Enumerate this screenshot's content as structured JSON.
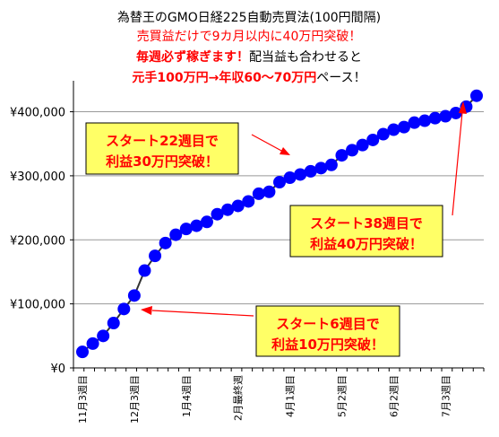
{
  "header": {
    "title": "為替王のGMO日経225自動売買法(100円間隔)",
    "line2": "売買益だけで9カ月以内に40万円突破！",
    "line3_emph": "毎週必ず稼ぎます！",
    "line3_rest": "配当益も合わせると",
    "line4_emph": "元手100万円→年収60～70万円",
    "line4_rest": "ペース！"
  },
  "callouts": [
    {
      "line1": "スタート22週目で",
      "line2": "利益30万円突破！"
    },
    {
      "line1": "スタート38週目で",
      "line2": "利益40万円突破！"
    },
    {
      "line1": "スタート6週目で",
      "line2": "利益10万円突破！"
    }
  ],
  "colors": {
    "title": "#000000",
    "red": "#ff0000",
    "marker": "#0000ff",
    "line": "#333333",
    "grid": "#999999",
    "callout_bg": "#ffff66",
    "callout_border": "#000000"
  },
  "chart_data": {
    "type": "line",
    "x_tick_labels": [
      "11月3週目",
      "12月3週目",
      "1月4週目",
      "2月最終週",
      "4月1週目",
      "5月2週目",
      "6月2週目",
      "7月3週目"
    ],
    "x_tick_indices": [
      0,
      5,
      10,
      15,
      20,
      25,
      30,
      35
    ],
    "y_tick_labels": [
      "¥0",
      "¥100,000",
      "¥200,000",
      "¥300,000",
      "¥400,000"
    ],
    "ylim": [
      0,
      440000
    ],
    "grid": "horizontal",
    "series": [
      {
        "values": [
          25000,
          38000,
          50000,
          70000,
          92000,
          113000,
          152000,
          175000,
          195000,
          208000,
          217000,
          222000,
          228000,
          240000,
          247000,
          253000,
          260000,
          272000,
          275000,
          290000,
          297000,
          302000,
          307000,
          312000,
          317000,
          332000,
          340000,
          348000,
          356000,
          365000,
          372000,
          376000,
          383000,
          386000,
          390000,
          393000,
          398000,
          408000,
          425000
        ]
      }
    ]
  }
}
